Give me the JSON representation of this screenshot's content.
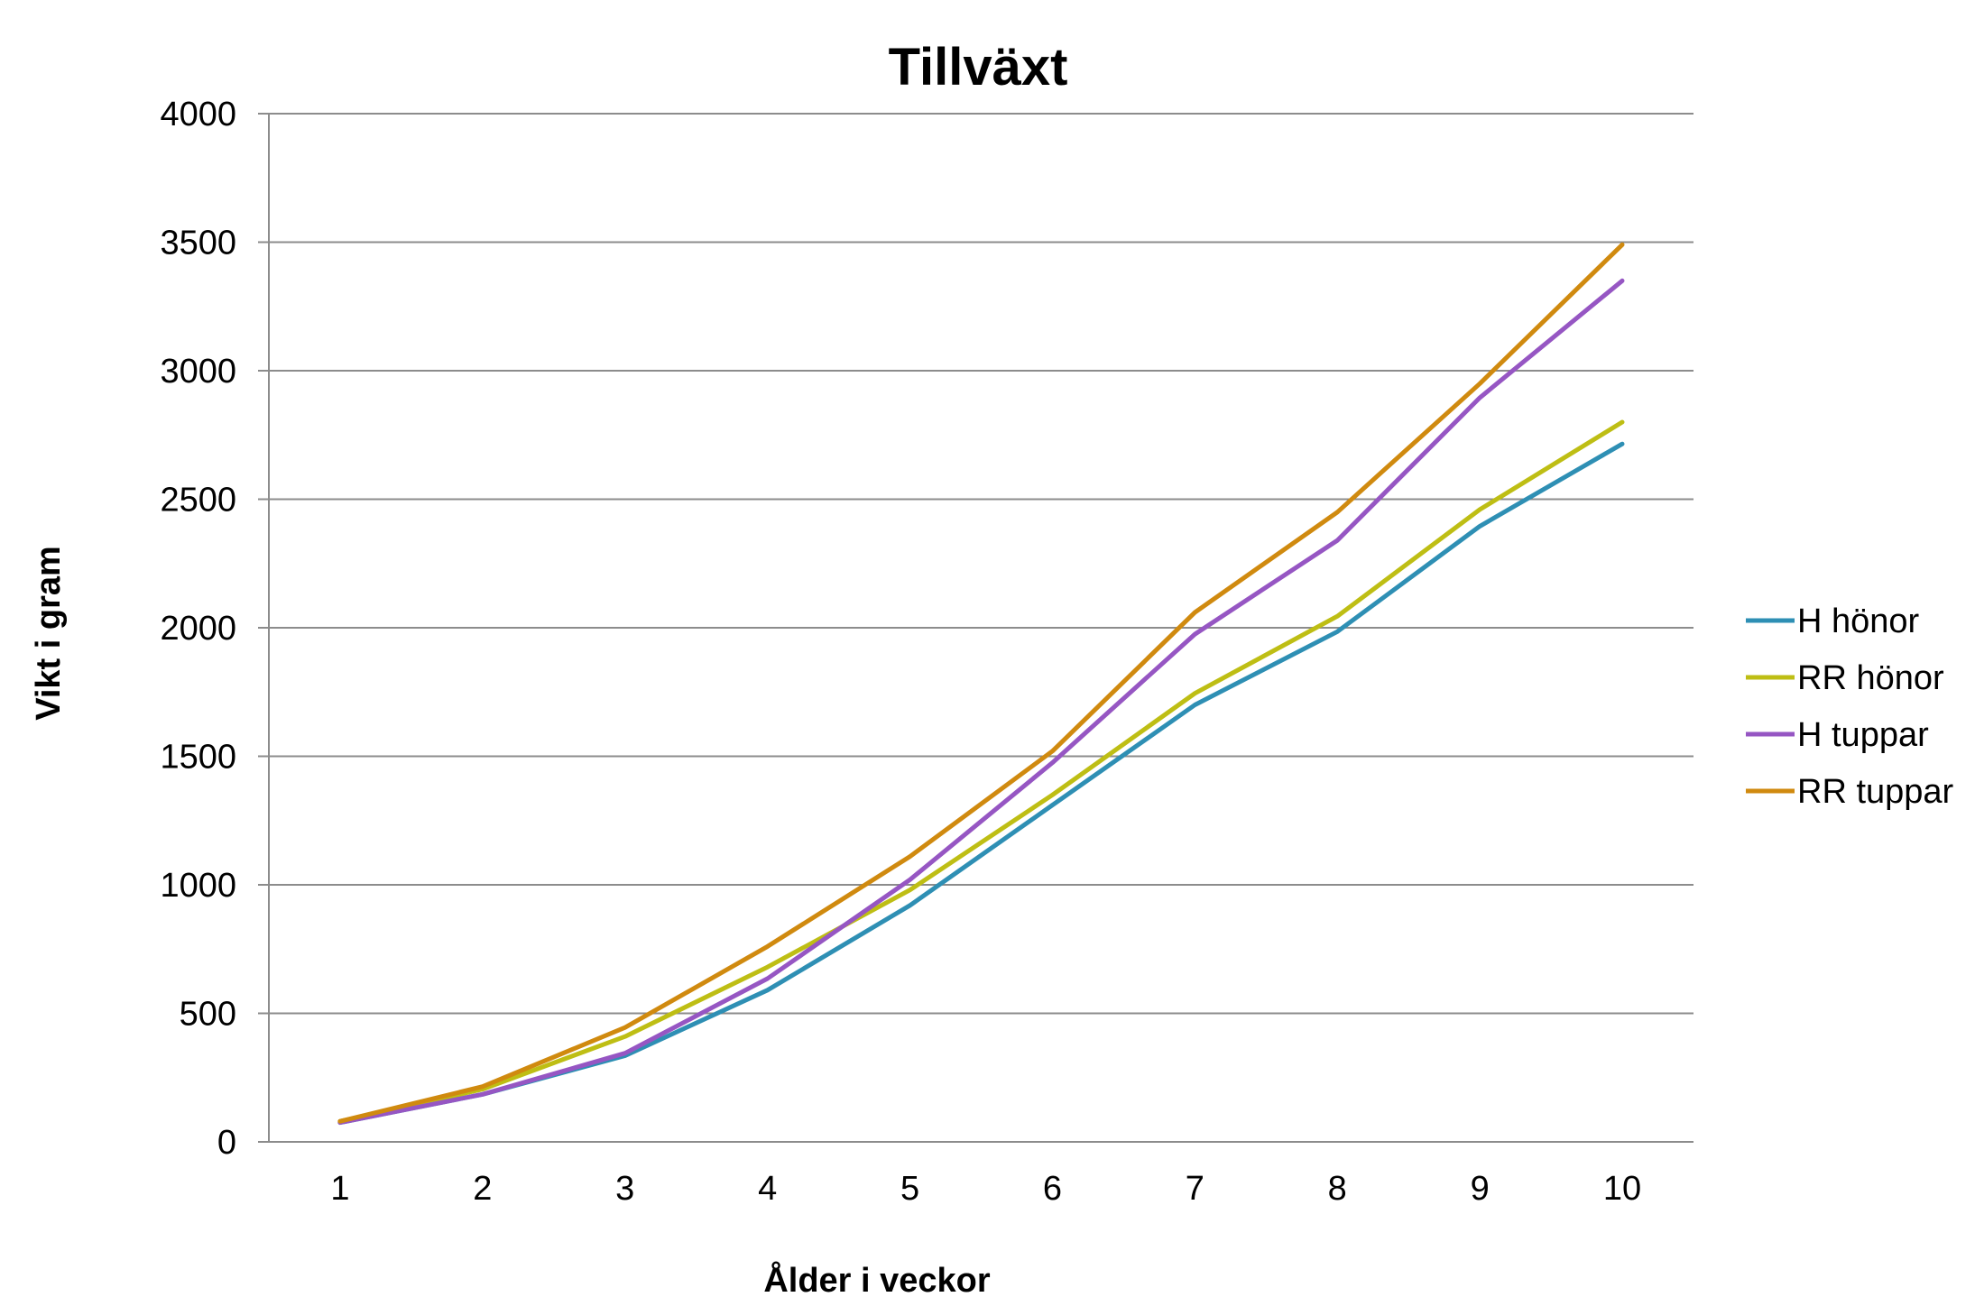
{
  "chart_data": {
    "type": "line",
    "title": "Tillväxt",
    "xlabel": "Ålder i veckor",
    "ylabel": "Vikt i gram",
    "categories": [
      "1",
      "2",
      "3",
      "4",
      "5",
      "6",
      "7",
      "8",
      "9",
      "10"
    ],
    "ylim": [
      0,
      4000
    ],
    "yticks": [
      "0",
      "500",
      "1000",
      "1500",
      "2000",
      "2500",
      "3000",
      "3500",
      "4000"
    ],
    "grid": true,
    "legend_position": "right",
    "series": [
      {
        "name": "H hönor",
        "color": "#2e8fb4",
        "values": [
          75,
          185,
          335,
          590,
          920,
          1310,
          1700,
          1985,
          2395,
          2715
        ]
      },
      {
        "name": "RR hönor",
        "color": "#bebe14",
        "values": [
          80,
          205,
          410,
          680,
          980,
          1350,
          1745,
          2045,
          2460,
          2800
        ]
      },
      {
        "name": "H tuppar",
        "color": "#9656c3",
        "values": [
          75,
          185,
          345,
          635,
          1020,
          1475,
          1975,
          2340,
          2895,
          3350
        ]
      },
      {
        "name": "RR tuppar",
        "color": "#d08a0f",
        "values": [
          80,
          215,
          445,
          760,
          1110,
          1520,
          2060,
          2450,
          2950,
          3490
        ]
      }
    ]
  }
}
